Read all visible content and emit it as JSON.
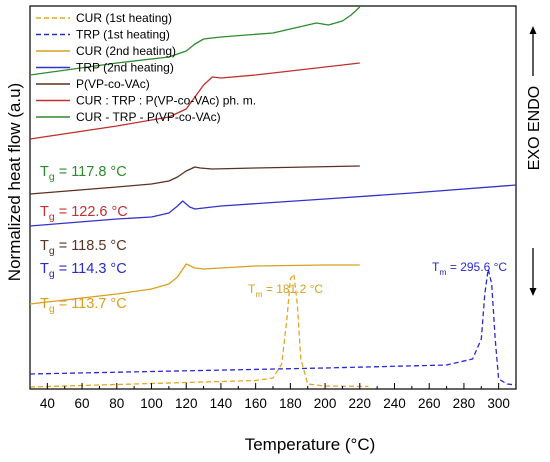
{
  "chart_data": {
    "type": "line",
    "title": "",
    "xlabel": "Temperature (°C)",
    "ylabel": "Normalized heat flow (a.u)",
    "right_label": "EXO  ENDO",
    "xlim": [
      30,
      310
    ],
    "xticks": [
      40,
      60,
      80,
      100,
      120,
      140,
      160,
      180,
      200,
      220,
      240,
      260,
      280,
      300
    ],
    "yticks_shown": false,
    "grid": false,
    "legend_position": "top-left",
    "series": [
      {
        "name": "CUR (1st heating)",
        "color": "#E6A526",
        "dash": "dashed",
        "x": [
          30,
          100,
          160,
          170,
          175,
          178,
          180,
          182,
          184,
          186,
          190,
          200,
          225
        ],
        "y": [
          2,
          5.5,
          8.5,
          11,
          25,
          70,
          110,
          115,
          85,
          30,
          5,
          3,
          2.5
        ]
      },
      {
        "name": "TRP (1st heating)",
        "color": "#2A2ACC",
        "dash": "dashed",
        "x": [
          30,
          100,
          200,
          270,
          285,
          290,
          292,
          294,
          296,
          298,
          300,
          305,
          310
        ],
        "y": [
          15,
          17.5,
          21,
          24,
          30,
          50,
          95,
          120,
          105,
          50,
          10,
          5,
          4
        ]
      },
      {
        "name": "CUR (2nd heating)",
        "color": "#D9A01E",
        "dash": "solid",
        "x": [
          30,
          80,
          100,
          110,
          115,
          120,
          125,
          130,
          140,
          160,
          200,
          220
        ],
        "y": [
          85,
          95,
          100,
          105,
          112,
          125,
          121,
          120,
          121,
          123,
          124,
          124
        ]
      },
      {
        "name": "TRP (2nd heating)",
        "color": "#3333CC",
        "dash": "solid",
        "x": [
          30,
          80,
          100,
          110,
          115,
          118,
          122,
          125,
          130,
          140,
          200,
          250,
          310
        ],
        "y": [
          163,
          170,
          172,
          176,
          183,
          188,
          182,
          180,
          181,
          183,
          190,
          196,
          204
        ]
      },
      {
        "name": "P(VP-co-VAc)",
        "color": "#5A3220",
        "dash": "solid",
        "x": [
          30,
          80,
          100,
          110,
          115,
          120,
          125,
          128,
          135,
          160,
          220
        ],
        "y": [
          195,
          202,
          205,
          208,
          212,
          218,
          222,
          221,
          220,
          221,
          223
        ]
      },
      {
        "name": "CUR : TRP : P(VP-co-VAc) ph. m.",
        "color": "#C03030",
        "dash": "solid",
        "x": [
          30,
          80,
          110,
          120,
          125,
          130,
          135,
          140,
          160,
          190,
          220
        ],
        "y": [
          250,
          263,
          272,
          280,
          292,
          304,
          312,
          311,
          314,
          320,
          326
        ]
      },
      {
        "name": "CUR - TRP - P(VP-co-VAc)",
        "color": "#2E8B2E",
        "dash": "solid",
        "x": [
          30,
          80,
          110,
          120,
          125,
          130,
          140,
          170,
          185,
          195,
          202,
          210,
          215,
          220
        ],
        "y": [
          314,
          326,
          332,
          338,
          345,
          350,
          352,
          356,
          362,
          366,
          364,
          368,
          374,
          382
        ]
      }
    ],
    "annotations": [
      {
        "series": "CUR - TRP - P(VP-co-VAc)",
        "label": "T",
        "sub": "g",
        "value": "= 117.8 °C",
        "color": "#2E8B2E"
      },
      {
        "series": "CUR : TRP : P(VP-co-VAc) ph. m.",
        "label": "T",
        "sub": "g",
        "value": "=  122.6 °C",
        "color": "#C03030"
      },
      {
        "series": "P(VP-co-VAc)",
        "label": "T",
        "sub": "g",
        "value": "= 118.5 °C",
        "color": "#5A3220"
      },
      {
        "series": "TRP (2nd heating)",
        "label": "T",
        "sub": "g",
        "value": "= 114.3 °C",
        "color": "#2A2ACC"
      },
      {
        "series": "CUR (2nd heating)",
        "label": "T",
        "sub": "g",
        "value": "= 113.7 °C",
        "color": "#D9A01E"
      },
      {
        "series": "CUR (1st heating)",
        "label": "T",
        "sub": "m",
        "value": "= 181.2 °C",
        "color": "#D9A01E"
      },
      {
        "series": "TRP (1st heating)",
        "label": "T",
        "sub": "m",
        "value": "= 295.6 °C",
        "color": "#2A2ACC"
      }
    ]
  }
}
